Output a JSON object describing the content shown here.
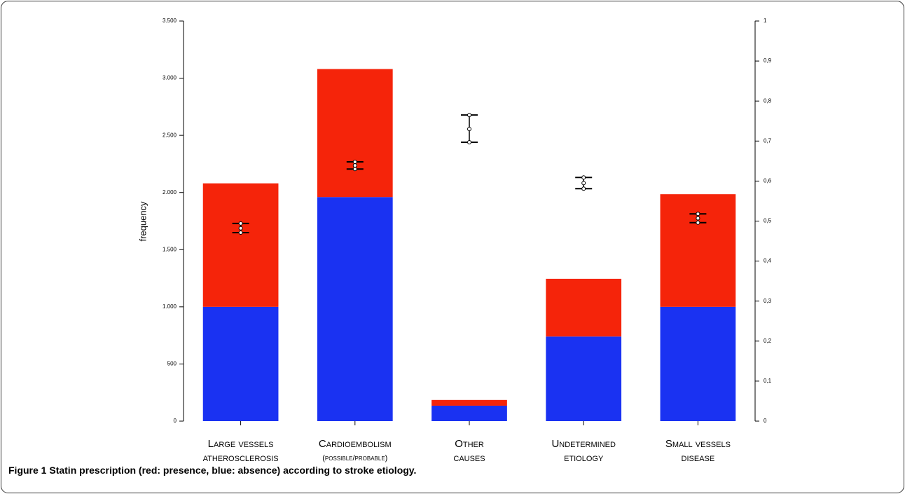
{
  "chart_data": {
    "type": "bar",
    "stacked": true,
    "y_label": "frequency",
    "categories": [
      [
        "Large vessels",
        "atherosclerosis"
      ],
      [
        "Cardioembolism",
        "(possible/probable)"
      ],
      [
        "Other",
        "causes"
      ],
      [
        "Undetermined",
        "etiology"
      ],
      [
        "Small vessels",
        "disease"
      ]
    ],
    "series": [
      {
        "color": "#1a32f2",
        "values": [
          1000,
          1960,
          135,
          740,
          1000
        ]
      },
      {
        "color": "#f5240a",
        "values": [
          1080,
          1120,
          50,
          505,
          985
        ]
      },
      {
        "type": "errorbar",
        "axis": "y2",
        "color": "#000000",
        "values": [
          0.482,
          0.639,
          0.73,
          0.595,
          0.507
        ],
        "lower": [
          0.471,
          0.63,
          0.697,
          0.581,
          0.496
        ],
        "upper": [
          0.494,
          0.648,
          0.765,
          0.609,
          0.518
        ]
      }
    ],
    "ylim": [
      0,
      3500
    ],
    "yticks": [
      0,
      500,
      {
        "value": 1000,
        "label": "1.000"
      },
      {
        "value": 1500,
        "label": "1.500"
      },
      {
        "value": 2000,
        "label": "2.000"
      },
      {
        "value": 2500,
        "label": "2.500"
      },
      {
        "value": 3000,
        "label": "3.000"
      },
      {
        "value": 3500,
        "label": "3.500"
      }
    ],
    "y2lim": [
      0,
      1
    ],
    "y2ticks": [
      0,
      {
        "value": 0.1,
        "label": "0,1"
      },
      {
        "value": 0.2,
        "label": "0,2"
      },
      {
        "value": 0.3,
        "label": "0,3"
      },
      {
        "value": 0.4,
        "label": "0,4"
      },
      {
        "value": 0.5,
        "label": "0,5"
      },
      {
        "value": 0.6,
        "label": "0,6"
      },
      {
        "value": 0.7,
        "label": "0,7"
      },
      {
        "value": 0.8,
        "label": "0,8"
      },
      {
        "value": 0.9,
        "label": "0,9"
      },
      1
    ]
  },
  "caption": {
    "label": "Figure 1",
    "text": "Statin prescription (red: presence, blue: absence) according to stroke etiology."
  }
}
